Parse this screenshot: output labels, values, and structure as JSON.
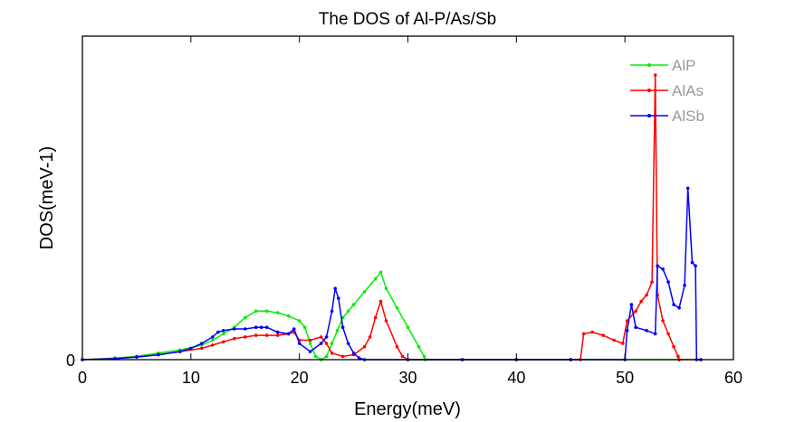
{
  "chart_data": {
    "type": "line",
    "title": "The DOS of Al-P/As/Sb",
    "xlabel": "Energy(meV)",
    "ylabel": "DOS(meV-1)",
    "xlim": [
      0,
      60
    ],
    "ylim": [
      0,
      1
    ],
    "xticks": [
      0,
      10,
      20,
      30,
      40,
      50,
      60
    ],
    "yticks": [
      0
    ],
    "grid": false,
    "legend_position": "top-right",
    "series": [
      {
        "name": "AlP",
        "color": "#00ee00",
        "x": [
          0,
          3,
          5,
          7,
          9,
          11,
          12,
          13,
          14,
          15,
          16,
          17,
          18,
          19,
          20,
          20.5,
          21,
          21.5,
          22,
          22.5,
          23,
          23.5,
          24,
          24.5,
          25,
          26,
          27,
          27.5,
          28,
          29,
          30,
          31,
          31.5,
          31.6,
          35,
          40,
          45,
          50,
          55
        ],
        "y": [
          0,
          0.005,
          0.01,
          0.02,
          0.03,
          0.045,
          0.06,
          0.08,
          0.1,
          0.13,
          0.15,
          0.15,
          0.145,
          0.135,
          0.12,
          0.1,
          0.05,
          0.01,
          0.0,
          0.01,
          0.05,
          0.09,
          0.13,
          0.15,
          0.17,
          0.21,
          0.25,
          0.27,
          0.22,
          0.16,
          0.1,
          0.04,
          0.01,
          0.0,
          0.0,
          0.0,
          0.0,
          0.0,
          0.0
        ]
      },
      {
        "name": "AlAs",
        "color": "#ff0000",
        "x": [
          0,
          3,
          5,
          7,
          9,
          11,
          12,
          13,
          14,
          15,
          16,
          17,
          18,
          19,
          19.5,
          20,
          21,
          22,
          22.5,
          23,
          24,
          25,
          26,
          26.5,
          27,
          27.5,
          28,
          29,
          29.5,
          30,
          35,
          40,
          45,
          45.9,
          46.2,
          47,
          48,
          49,
          49.8,
          50.2,
          51,
          51.5,
          52,
          52.5,
          52.8,
          53,
          53.5,
          54,
          54.5,
          54.9,
          55,
          57
        ],
        "y": [
          0,
          0.003,
          0.008,
          0.015,
          0.025,
          0.035,
          0.045,
          0.055,
          0.065,
          0.07,
          0.075,
          0.075,
          0.075,
          0.08,
          0.085,
          0.06,
          0.06,
          0.07,
          0.05,
          0.02,
          0.01,
          0.015,
          0.04,
          0.07,
          0.13,
          0.18,
          0.12,
          0.04,
          0.01,
          0.0,
          0.0,
          0.0,
          0.0,
          0.0,
          0.08,
          0.085,
          0.075,
          0.06,
          0.05,
          0.12,
          0.15,
          0.18,
          0.2,
          0.24,
          0.88,
          0.2,
          0.12,
          0.08,
          0.04,
          0.01,
          0.0,
          0.0
        ]
      },
      {
        "name": "AlSb",
        "color": "#0000ff",
        "x": [
          0,
          3,
          5,
          7,
          9,
          10,
          11,
          12,
          12.5,
          13,
          14,
          15,
          16,
          16.5,
          17,
          18,
          19,
          19.5,
          20,
          21,
          22,
          22.5,
          23,
          23.3,
          23.6,
          24,
          24.5,
          25,
          25.5,
          26,
          30,
          35,
          40,
          45,
          50,
          50.2,
          50.6,
          51,
          52,
          52.8,
          53,
          53.5,
          54,
          54.5,
          55,
          55.5,
          55.8,
          56.2,
          56.5,
          56.6,
          57
        ],
        "y": [
          0,
          0.003,
          0.008,
          0.015,
          0.025,
          0.035,
          0.05,
          0.07,
          0.085,
          0.09,
          0.095,
          0.095,
          0.1,
          0.1,
          0.1,
          0.085,
          0.08,
          0.095,
          0.05,
          0.025,
          0.05,
          0.07,
          0.15,
          0.22,
          0.19,
          0.1,
          0.05,
          0.02,
          0.005,
          0.0,
          0.0,
          0.0,
          0.0,
          0.0,
          0.0,
          0.09,
          0.17,
          0.1,
          0.09,
          0.08,
          0.29,
          0.28,
          0.24,
          0.17,
          0.16,
          0.23,
          0.53,
          0.3,
          0.29,
          0.0,
          0.0
        ]
      }
    ]
  }
}
